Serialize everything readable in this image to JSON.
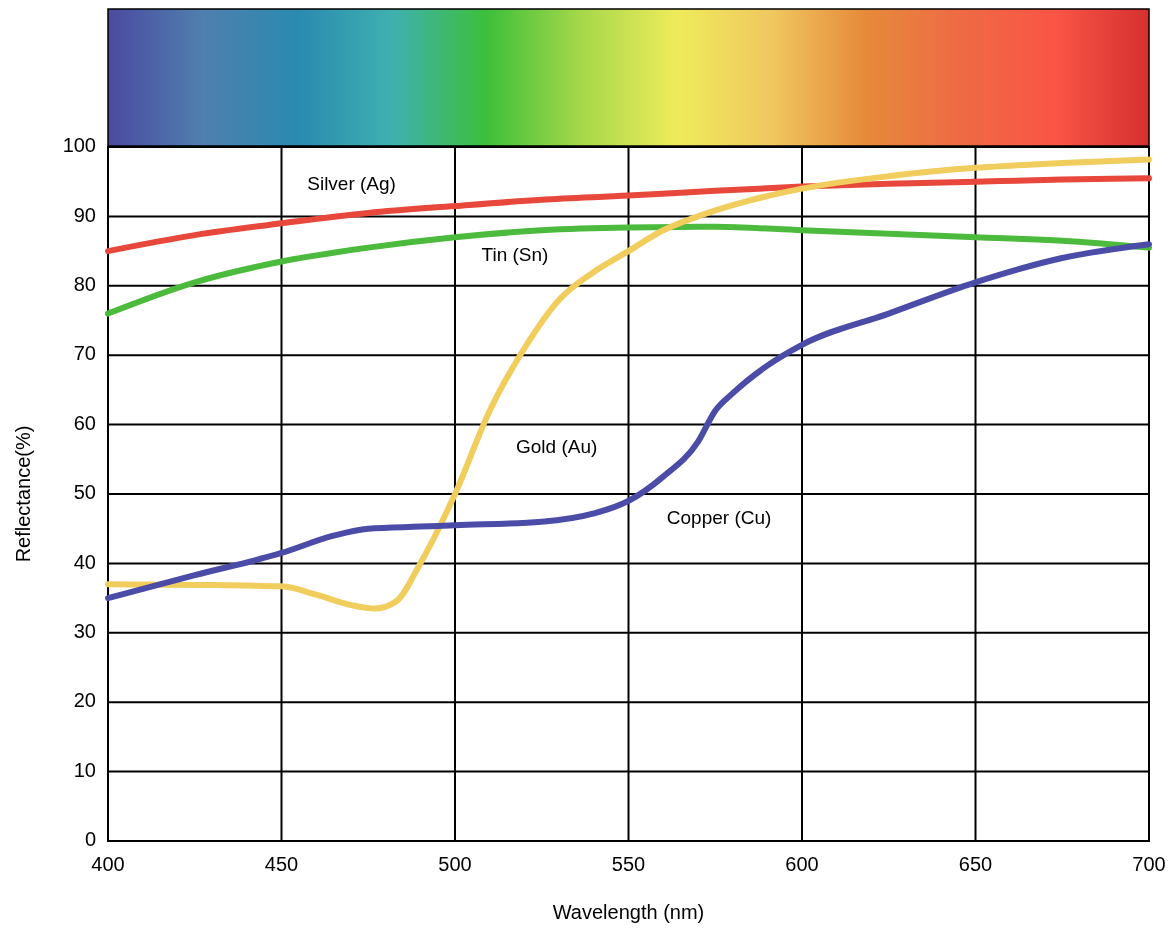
{
  "chart_data": {
    "type": "line",
    "xlabel": "Wavelength (nm)",
    "ylabel": "Reflectance(%)",
    "xlim": [
      400,
      700
    ],
    "xticks": [
      400,
      450,
      500,
      550,
      600,
      650,
      700
    ],
    "ylim": [
      0,
      100
    ],
    "yticks": [
      0,
      10,
      20,
      30,
      40,
      50,
      60,
      70,
      80,
      90,
      100
    ],
    "grid": true,
    "marker": "none",
    "line_style": "solid",
    "series": [
      {
        "name": "Silver (Ag)",
        "color": "#e8473b",
        "x": [
          400,
          425,
          450,
          475,
          500,
          525,
          550,
          575,
          600,
          625,
          650,
          675,
          700
        ],
        "values": [
          85,
          87.3,
          89,
          90.5,
          91.5,
          92.4,
          93,
          93.7,
          94.3,
          94.7,
          95,
          95.3,
          95.5
        ]
      },
      {
        "name": "Tin (Sn)",
        "color": "#4cba3c",
        "x": [
          400,
          425,
          450,
          475,
          500,
          525,
          550,
          575,
          600,
          625,
          650,
          675,
          700
        ],
        "values": [
          76,
          80.5,
          83.5,
          85.5,
          87,
          88,
          88.4,
          88.5,
          88,
          87.5,
          87,
          86.5,
          85.5
        ]
      },
      {
        "name": "Gold (Au)",
        "color": "#f0cd5c",
        "x": [
          400,
          425,
          450,
          460,
          470,
          477,
          483,
          490,
          500,
          510,
          520,
          530,
          540,
          550,
          560,
          570,
          585,
          600,
          625,
          650,
          675,
          700
        ],
        "values": [
          37,
          36.9,
          36.7,
          35.5,
          34,
          33.5,
          34.5,
          40,
          50,
          62,
          71,
          78,
          82,
          85,
          88,
          90,
          92.3,
          94,
          95.8,
          97,
          97.7,
          98.2
        ]
      },
      {
        "name": "Copper (Cu)",
        "color": "#4b4ba8",
        "x": [
          400,
          425,
          450,
          465,
          475,
          490,
          500,
          525,
          540,
          550,
          560,
          570,
          575,
          580,
          590,
          600,
          625,
          650,
          675,
          700
        ],
        "values": [
          35,
          38.3,
          41.5,
          44,
          45,
          45.3,
          45.5,
          46,
          47.2,
          49,
          52.5,
          57.5,
          62,
          64.5,
          68.5,
          71.5,
          76,
          80.5,
          84,
          86
        ]
      }
    ]
  }
}
